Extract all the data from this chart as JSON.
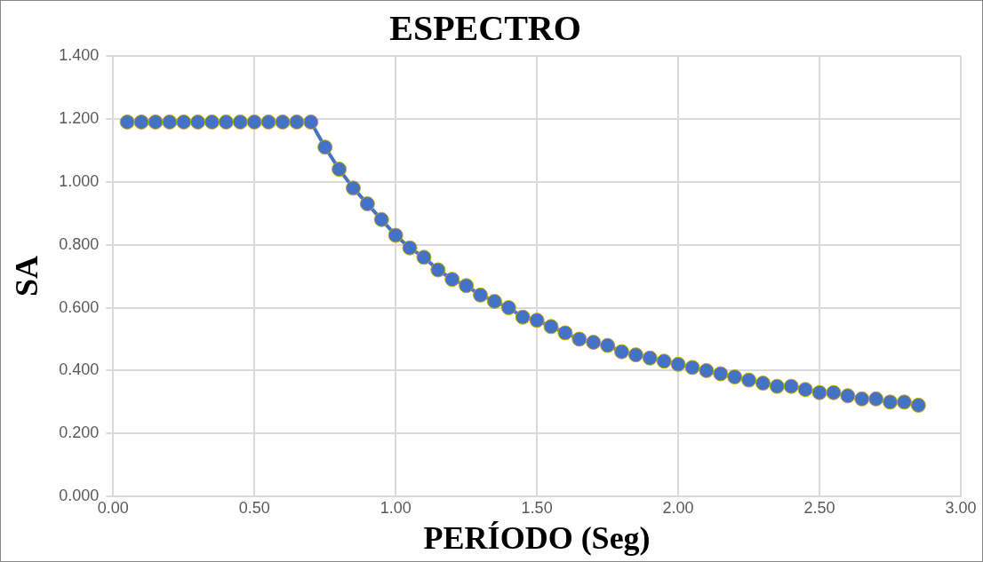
{
  "chart_data": {
    "type": "line",
    "title": "ESPECTRO",
    "xlabel": "PERÍODO (Seg)",
    "ylabel": "SA",
    "x": [
      0.05,
      0.1,
      0.15,
      0.2,
      0.25,
      0.3,
      0.35,
      0.4,
      0.45,
      0.5,
      0.55,
      0.6,
      0.65,
      0.7,
      0.75,
      0.8,
      0.85,
      0.9,
      0.95,
      1.0,
      1.05,
      1.1,
      1.15,
      1.2,
      1.25,
      1.3,
      1.35,
      1.4,
      1.45,
      1.5,
      1.55,
      1.6,
      1.65,
      1.7,
      1.75,
      1.8,
      1.85,
      1.9,
      1.95,
      2.0,
      2.05,
      2.1,
      2.15,
      2.2,
      2.25,
      2.3,
      2.35,
      2.4,
      2.45,
      2.5,
      2.55,
      2.6,
      2.65,
      2.7,
      2.75,
      2.8,
      2.85
    ],
    "series": [
      {
        "color": "#4472c4",
        "values": [
          1.19,
          1.19,
          1.19,
          1.19,
          1.19,
          1.19,
          1.19,
          1.19,
          1.19,
          1.19,
          1.19,
          1.19,
          1.19,
          1.19,
          1.11,
          1.04,
          0.98,
          0.93,
          0.88,
          0.83,
          0.79,
          0.76,
          0.72,
          0.69,
          0.67,
          0.64,
          0.62,
          0.6,
          0.57,
          0.56,
          0.54,
          0.52,
          0.5,
          0.49,
          0.48,
          0.46,
          0.45,
          0.44,
          0.43,
          0.42,
          0.41,
          0.4,
          0.39,
          0.38,
          0.37,
          0.36,
          0.35,
          0.35,
          0.34,
          0.33,
          0.33,
          0.32,
          0.31,
          0.31,
          0.3,
          0.3,
          0.29
        ]
      }
    ],
    "xlim": [
      0,
      3
    ],
    "xticks": [
      {
        "value": 0,
        "label": "0.00"
      },
      {
        "value": 0.5,
        "label": "0.50"
      },
      {
        "value": 1,
        "label": "1.00"
      },
      {
        "value": 1.5,
        "label": "1.50"
      },
      {
        "value": 2,
        "label": "2.00"
      },
      {
        "value": 2.5,
        "label": "2.50"
      },
      {
        "value": 3,
        "label": "3.00"
      }
    ],
    "ylim": [
      0,
      1.4
    ],
    "yticks": [
      {
        "value": 0,
        "label": "0.000"
      },
      {
        "value": 0.2,
        "label": "0.200"
      },
      {
        "value": 0.4,
        "label": "0.400"
      },
      {
        "value": 0.6,
        "label": "0.600"
      },
      {
        "value": 0.8,
        "label": "0.800"
      },
      {
        "value": 1.0,
        "label": "1.000"
      },
      {
        "value": 1.2,
        "label": "1.200"
      },
      {
        "value": 1.4,
        "label": "1.400"
      }
    ],
    "grid": true,
    "legend": false,
    "marker": "circle",
    "line_style": "solid"
  }
}
